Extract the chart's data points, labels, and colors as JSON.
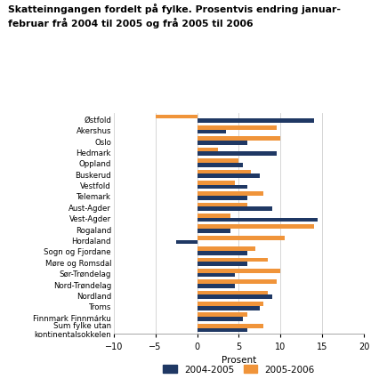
{
  "title_line1": "Skatteinngangen fordelt på fylke. Prosentvis endring januar-",
  "title_line2": "februar frå 2004 til 2005 og frå 2005 til 2006",
  "categories": [
    "Østfold",
    "Akershus",
    "Oslo",
    "Hedmark",
    "Oppland",
    "Buskerud",
    "Vestfold",
    "Telemark",
    "Aust-Agder",
    "Vest-Agder",
    "Rogaland",
    "Hordaland",
    "Sogn og Fjordane",
    "Møre og Romsdal",
    "Sør-Trøndelag",
    "Nord-Trøndelag",
    "Nordland",
    "Troms",
    "Finnmark Finnmárku",
    "Sum fylke utan\nkontinentalsokkelen"
  ],
  "values_2004_2005": [
    14.0,
    3.5,
    6.0,
    9.5,
    5.5,
    7.5,
    6.0,
    6.0,
    9.0,
    14.5,
    4.0,
    -2.5,
    6.0,
    6.0,
    4.5,
    4.5,
    9.0,
    7.5,
    5.5,
    6.0
  ],
  "values_2005_2006": [
    -5.0,
    9.5,
    10.0,
    2.5,
    5.0,
    6.5,
    4.5,
    8.0,
    6.0,
    4.0,
    14.0,
    10.5,
    7.0,
    8.5,
    10.0,
    9.5,
    8.5,
    8.0,
    6.0,
    8.0
  ],
  "color_2004_2005": "#1f3864",
  "color_2005_2006": "#f0943a",
  "xlabel": "Prosent",
  "xlim": [
    -10,
    20
  ],
  "xticks": [
    -10,
    -5,
    0,
    5,
    10,
    15,
    20
  ],
  "legend_2004_2005": "2004-2005",
  "legend_2005_2006": "2005-2006",
  "background_color": "#ffffff",
  "grid_color": "#d0d0d0"
}
